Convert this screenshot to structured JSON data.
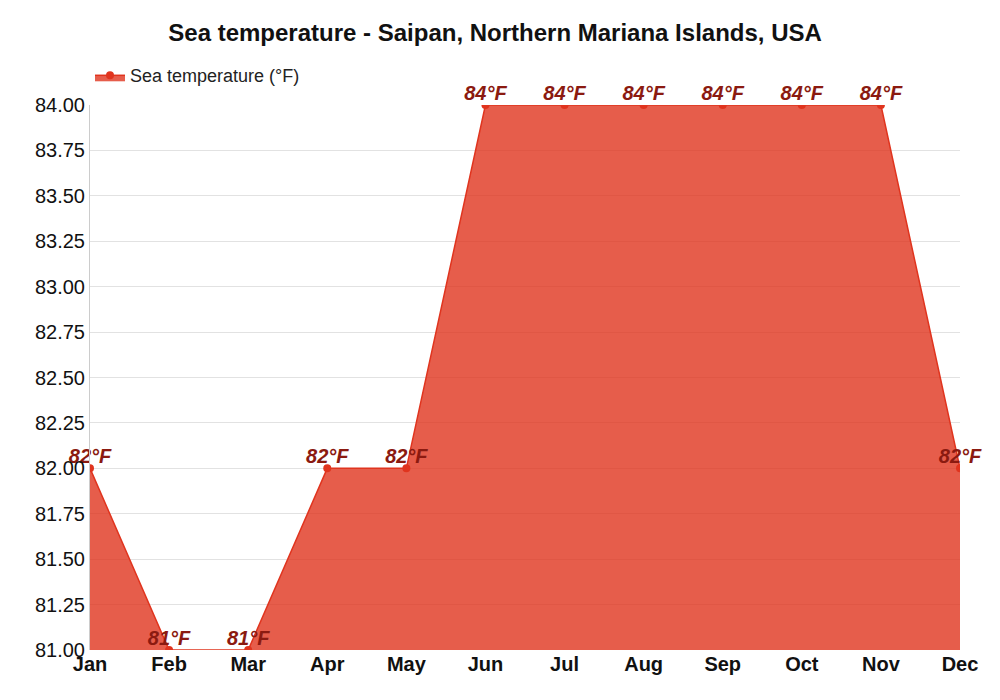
{
  "chart_data": {
    "type": "line",
    "title": "Sea temperature - Saipan, Northern Mariana Islands, USA",
    "categories": [
      "Jan",
      "Feb",
      "Mar",
      "Apr",
      "May",
      "Jun",
      "Jul",
      "Aug",
      "Sep",
      "Oct",
      "Nov",
      "Dec"
    ],
    "series": [
      {
        "name": "Sea temperature (°F)",
        "color": "#e0341e",
        "values": [
          82,
          81,
          81,
          82,
          82,
          84,
          84,
          84,
          84,
          84,
          84,
          82
        ],
        "value_labels": [
          "82°F",
          "81°F",
          "81°F",
          "82°F",
          "82°F",
          "84°F",
          "84°F",
          "84°F",
          "84°F",
          "84°F",
          "84°F",
          "82°F"
        ],
        "marker": "circle",
        "line_style": "solid"
      }
    ],
    "ylim": [
      81,
      84
    ],
    "yticks": [
      {
        "value": 81,
        "label": "81.00"
      },
      {
        "value": 81.25,
        "label": "81.25"
      },
      {
        "value": 81.5,
        "label": "81.50"
      },
      {
        "value": 81.75,
        "label": "81.75"
      },
      {
        "value": 82,
        "label": "82.00"
      },
      {
        "value": 82.25,
        "label": "82.25"
      },
      {
        "value": 82.5,
        "label": "82.50"
      },
      {
        "value": 82.75,
        "label": "82.75"
      },
      {
        "value": 83,
        "label": "83.00"
      },
      {
        "value": 83.25,
        "label": "83.25"
      },
      {
        "value": 83.5,
        "label": "83.50"
      },
      {
        "value": 83.75,
        "label": "83.75"
      },
      {
        "value": 84,
        "label": "84.00"
      }
    ],
    "grid": true,
    "legend": "top-left",
    "data_labels": true
  }
}
